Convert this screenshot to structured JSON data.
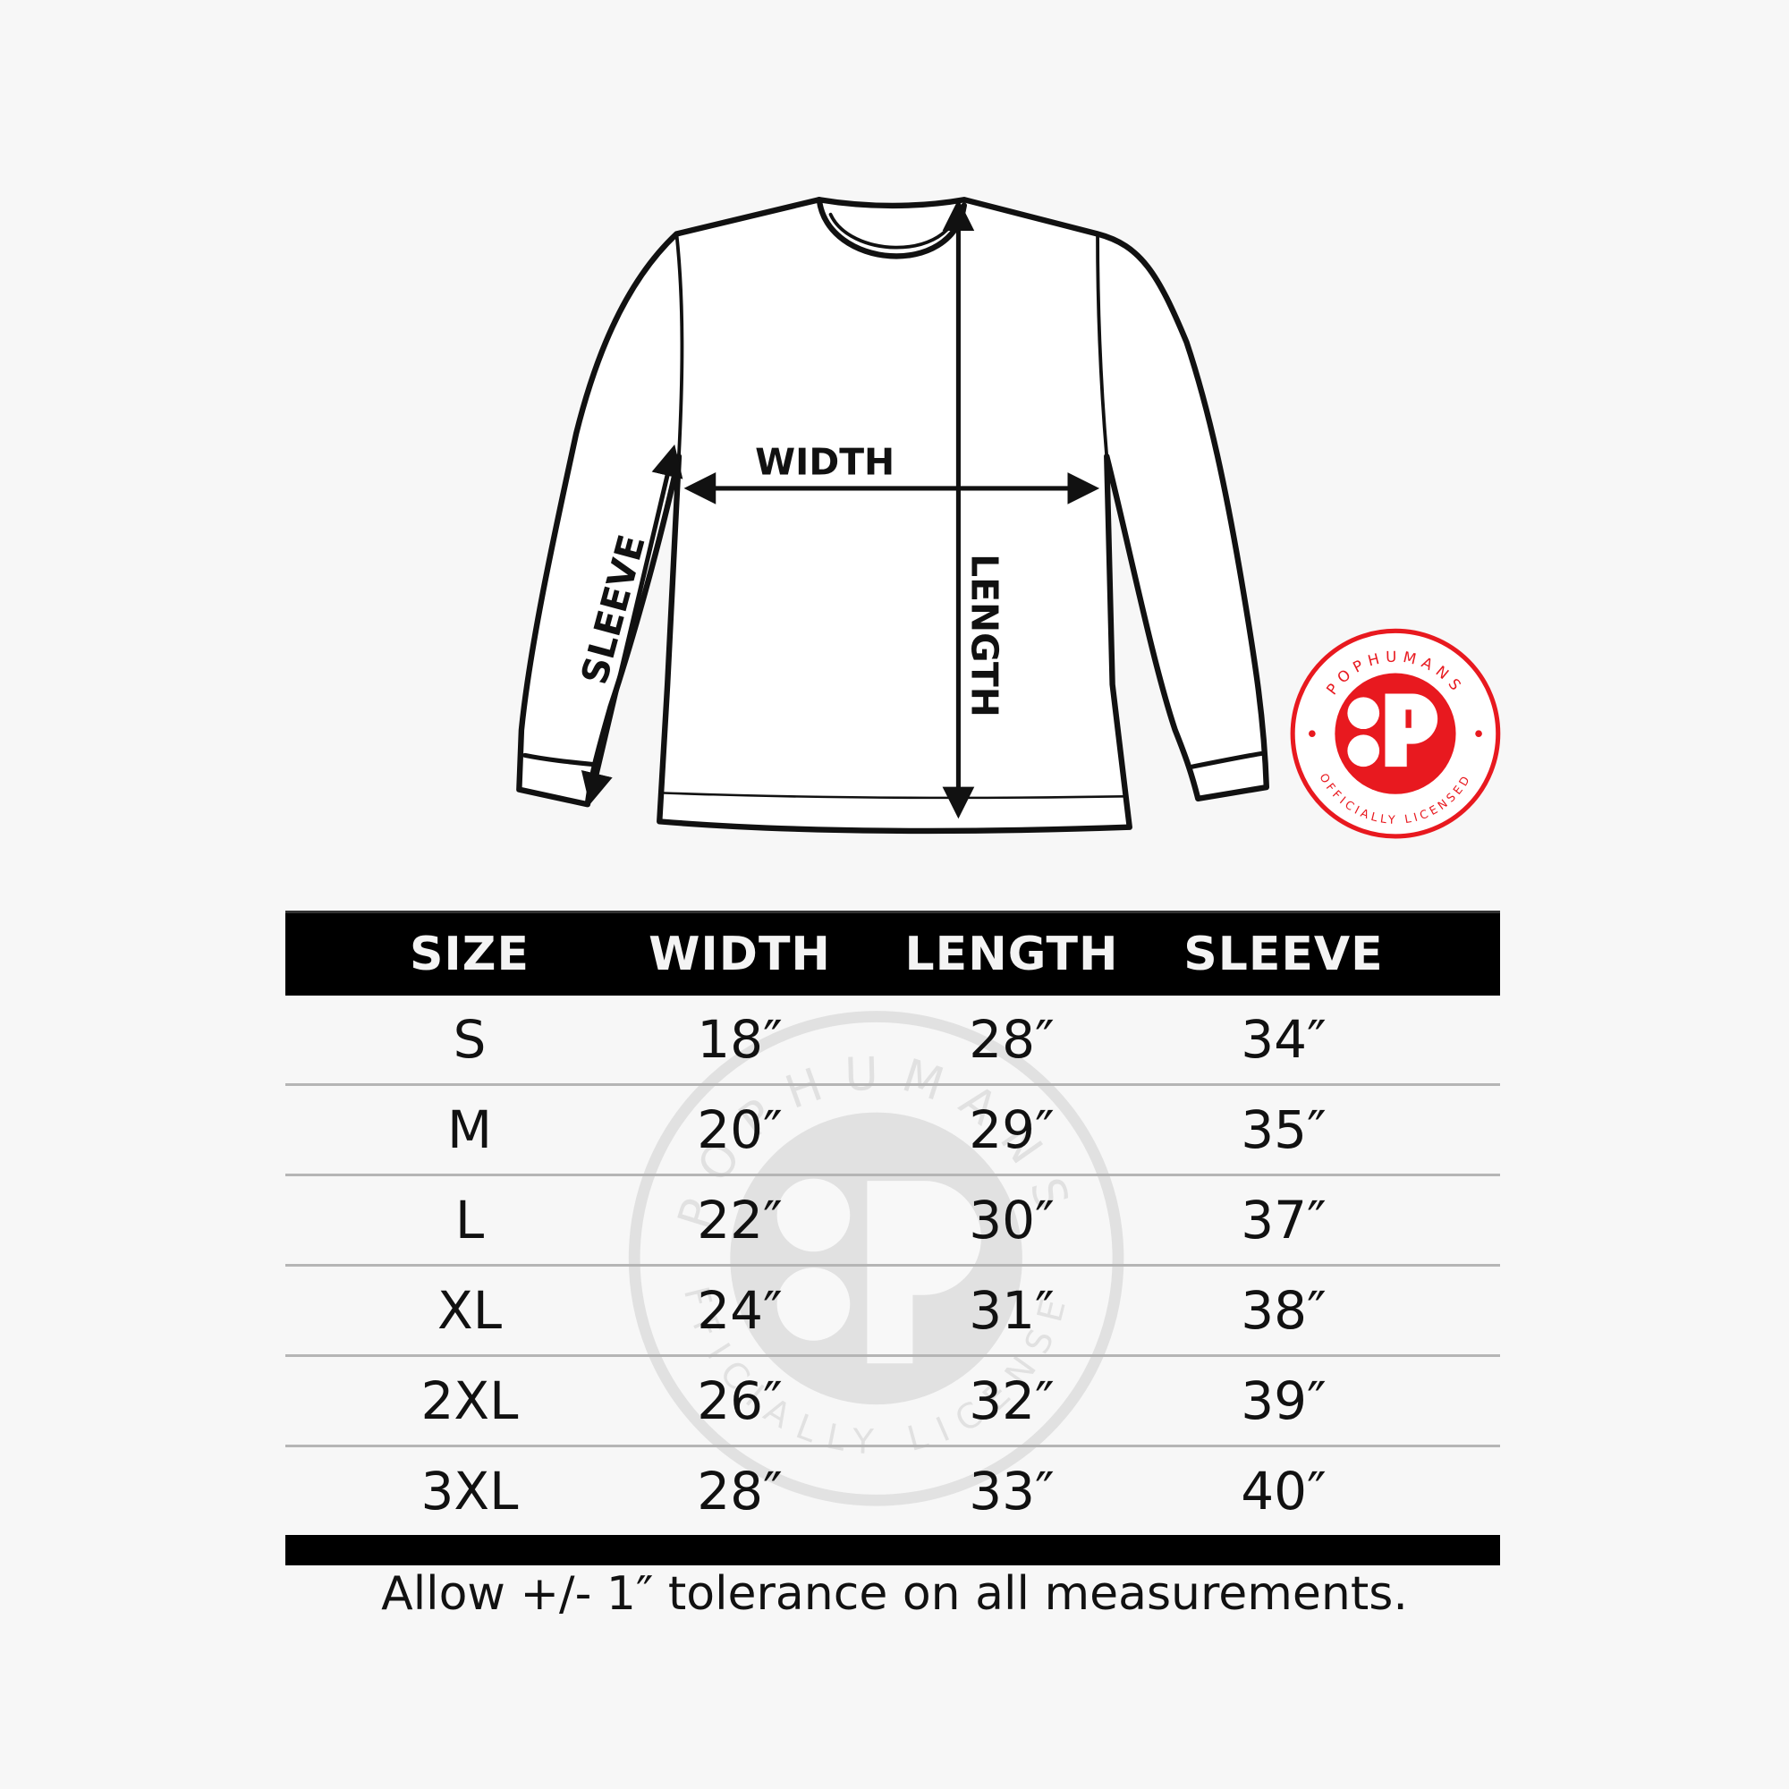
{
  "diagram": {
    "width_label": "WIDTH",
    "length_label": "LENGTH",
    "sleeve_label": "SLEEVE"
  },
  "logo": {
    "top_text": "POPHUMANS",
    "bottom_text": "OFFICIALLY LICENSED",
    "mark": "P",
    "color": "#e8191f"
  },
  "table": {
    "headers": [
      "SIZE",
      "WIDTH",
      "LENGTH",
      "SLEEVE"
    ],
    "rows": [
      [
        "S",
        "18″",
        "28″",
        "34″"
      ],
      [
        "M",
        "20″",
        "29″",
        "35″"
      ],
      [
        "L",
        "22″",
        "30″",
        "37″"
      ],
      [
        "XL",
        "24″",
        "31″",
        "38″"
      ],
      [
        "2XL",
        "26″",
        "32″",
        "39″"
      ],
      [
        "3XL",
        "28″",
        "33″",
        "40″"
      ]
    ]
  },
  "footer": "Allow +/- 1″ tolerance on all measurements."
}
